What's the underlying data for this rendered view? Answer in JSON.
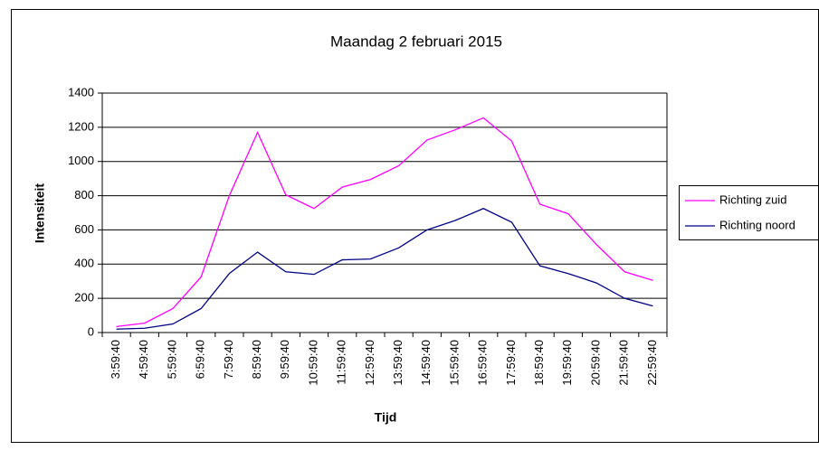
{
  "chart_data": {
    "type": "line",
    "title": "Maandag 2 februari 2015",
    "x_label": "Tijd",
    "y_label": "Intensiteit",
    "categories": [
      "3:59:40",
      "4:59:40",
      "5:59:40",
      "6:59:40",
      "7:59:40",
      "8:59:40",
      "9:59:40",
      "10:59:40",
      "11:59:40",
      "12:59:40",
      "13:59:40",
      "14:59:40",
      "15:59:40",
      "16:59:40",
      "17:59:40",
      "18:59:40",
      "19:59:40",
      "20:59:40",
      "21:59:40",
      "22:59:40"
    ],
    "series": [
      {
        "name": "Richting zuid",
        "color": "#ff00ff",
        "values": [
          35,
          55,
          140,
          325,
          800,
          1170,
          805,
          725,
          850,
          895,
          975,
          1125,
          1185,
          1255,
          1120,
          750,
          695,
          515,
          355,
          305
        ]
      },
      {
        "name": "Richting noord",
        "color": "#000080",
        "values": [
          20,
          25,
          50,
          140,
          345,
          470,
          355,
          340,
          425,
          430,
          495,
          600,
          655,
          725,
          645,
          390,
          345,
          290,
          200,
          155
        ]
      }
    ],
    "ylim": [
      0,
      1400
    ],
    "yticks": [
      0,
      200,
      400,
      600,
      800,
      1000,
      1200,
      1400
    ],
    "grid": true,
    "legend": "right"
  }
}
